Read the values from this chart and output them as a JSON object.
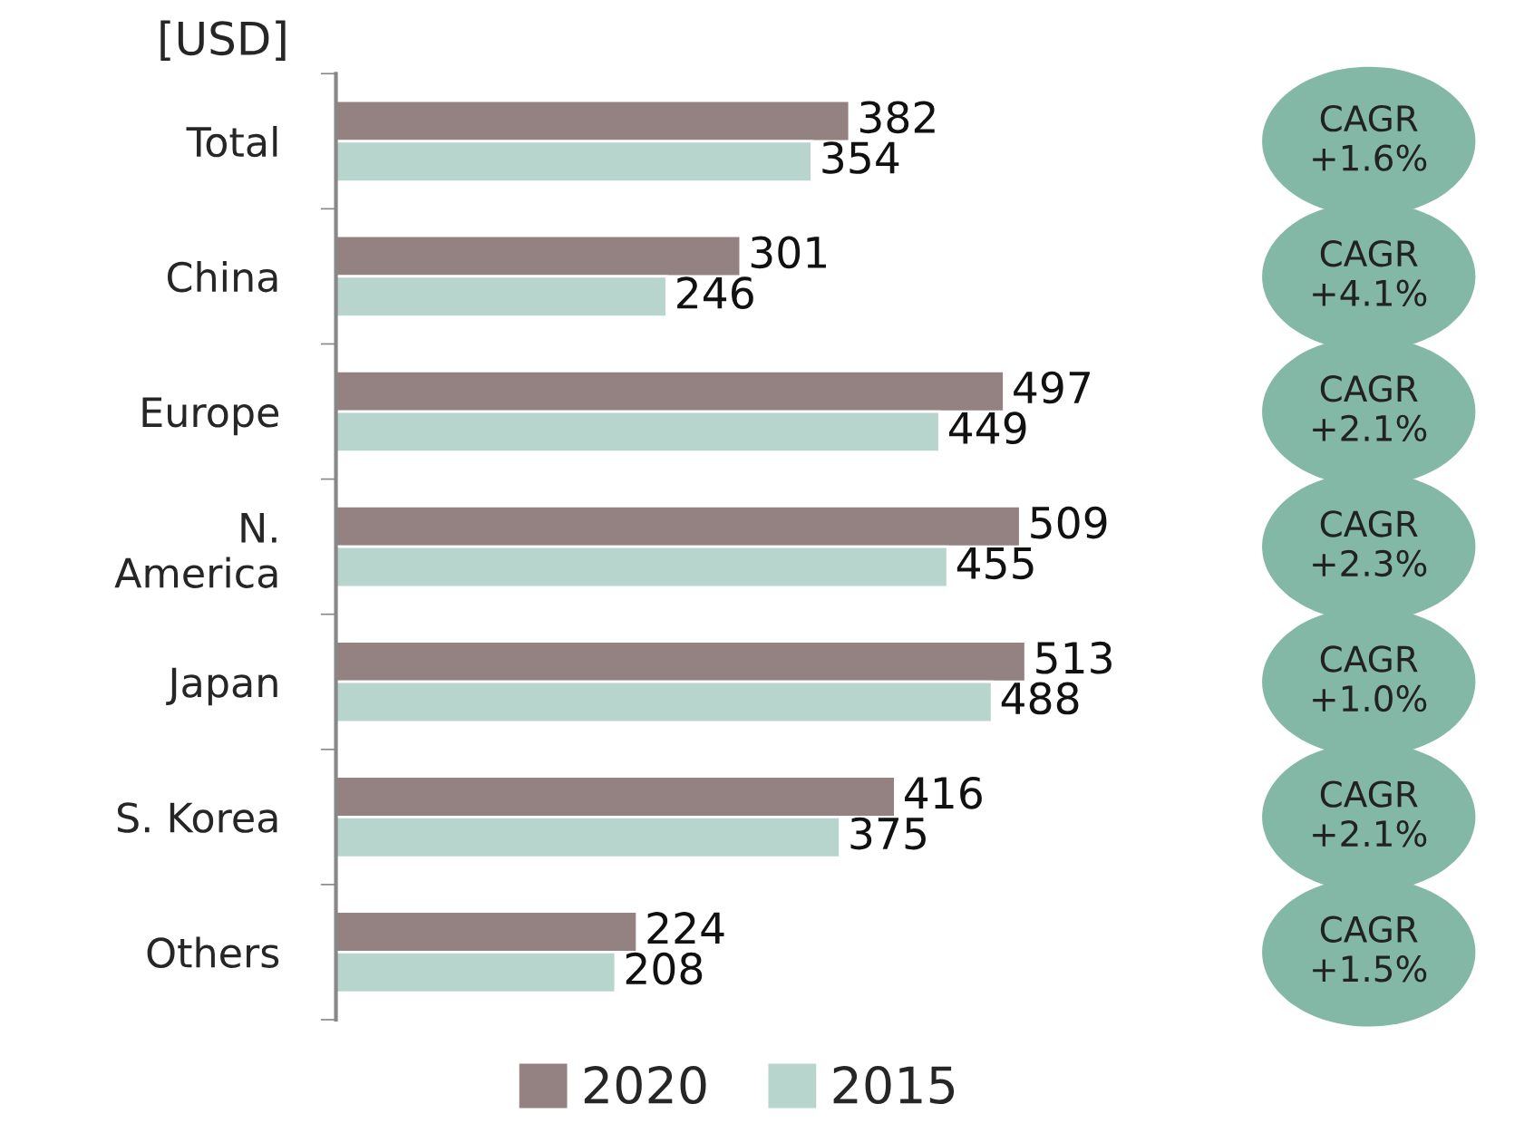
{
  "chart_data": {
    "type": "bar",
    "orientation": "horizontal",
    "ylabel": "[USD]",
    "categories": [
      "Total",
      "China",
      "Europe",
      "N.\nAmerica",
      "Japan",
      "S. Korea",
      "Others"
    ],
    "series": [
      {
        "name": "2020",
        "color": "#948283",
        "values": [
          382,
          301,
          497,
          509,
          513,
          416,
          224
        ]
      },
      {
        "name": "2015",
        "color": "#b7d5cc",
        "values": [
          354,
          246,
          449,
          455,
          488,
          375,
          208
        ]
      }
    ],
    "data_labels": true,
    "legend": "bottom",
    "grid": false,
    "annotations": [
      "CAGR\n+1.6%",
      "CAGR\n+4.1%",
      "CAGR\n+2.1%",
      "CAGR\n+2.3%",
      "CAGR\n+1.0%",
      "CAGR\n+2.1%",
      "CAGR\n+1.5%"
    ]
  }
}
